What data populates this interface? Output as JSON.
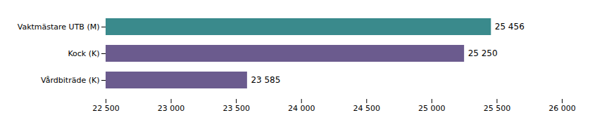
{
  "chart_data": {
    "type": "bar",
    "orientation": "horizontal",
    "categories": [
      "Vårdbiträde (K)",
      "Kock (K)",
      "Vaktmästare UTB (M)"
    ],
    "values": [
      23585,
      25250,
      25456
    ],
    "value_labels": [
      "23 585",
      "25 250",
      "25 456"
    ],
    "data_labels": true,
    "colors": [
      "#6b5b8e",
      "#6b5b8e",
      "#3a8a8c"
    ],
    "xlim": [
      22500,
      26000
    ],
    "xticks": [
      {
        "value": 22500,
        "label": "22 500"
      },
      {
        "value": 23000,
        "label": "23 000"
      },
      {
        "value": 23500,
        "label": "23 500"
      },
      {
        "value": 24000,
        "label": "24 000"
      },
      {
        "value": 24500,
        "label": "24 500"
      },
      {
        "value": 25000,
        "label": "25 000"
      },
      {
        "value": 25500,
        "label": "25 500"
      },
      {
        "value": 26000,
        "label": "26 000"
      }
    ],
    "grid": false
  }
}
